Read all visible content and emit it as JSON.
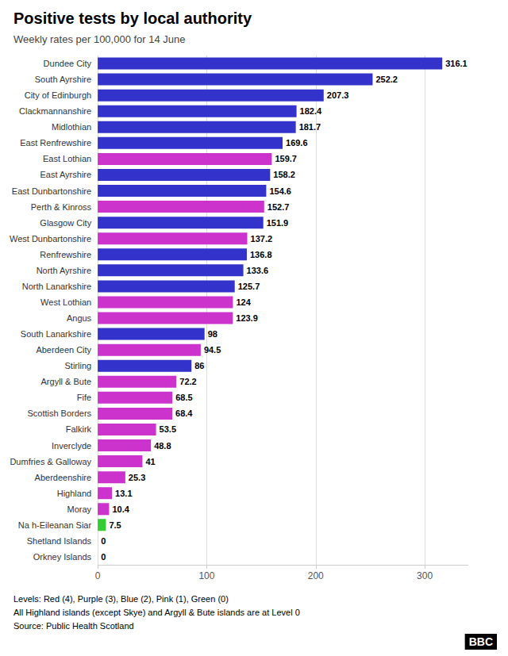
{
  "chart_data": {
    "type": "bar",
    "orientation": "horizontal",
    "title": "Positive tests by local authority",
    "subtitle": "Weekly rates per 100,000 for 14 June",
    "annotations": [
      "Levels: Red (4), Purple (3), Blue (2), Pink (1), Green (0)",
      "All Highland islands (except Skye) and Argyll & Bute islands are at Level 0",
      "Source: Public Health Scotland",
      "BBC"
    ],
    "categories": [
      "Dundee City",
      "South Ayrshire",
      "City of Edinburgh",
      "Clackmannanshire",
      "Midlothian",
      "East Renfrewshire",
      "East Lothian",
      "East Ayrshire",
      "East Dunbartonshire",
      "Perth & Kinross",
      "Glasgow City",
      "West Dunbartonshire",
      "Renfrewshire",
      "North Ayrshire",
      "North Lanarkshire",
      "West Lothian",
      "Angus",
      "South Lanarkshire",
      "Aberdeen City",
      "Stirling",
      "Argyll & Bute",
      "Fife",
      "Scottish Borders",
      "Falkirk",
      "Inverclyde",
      "Dumfries & Galloway",
      "Aberdeenshire",
      "Highland",
      "Moray",
      "Na h-Eileanan Siar",
      "Shetland Islands",
      "Orkney Islands"
    ],
    "values": [
      316.1,
      252.2,
      207.3,
      182.4,
      181.7,
      169.6,
      159.7,
      158.2,
      154.6,
      152.7,
      151.9,
      137.2,
      136.8,
      133.6,
      125.7,
      124.0,
      123.9,
      98.0,
      94.5,
      86.0,
      72.2,
      68.5,
      68.4,
      53.5,
      48.8,
      41.0,
      25.3,
      13.1,
      10.4,
      7.5,
      0.0,
      0.0
    ],
    "colors": [
      "#3333cc",
      "#3333cc",
      "#3333cc",
      "#3333cc",
      "#3333cc",
      "#3333cc",
      "#cc33cc",
      "#3333cc",
      "#3333cc",
      "#cc33cc",
      "#3333cc",
      "#cc33cc",
      "#3333cc",
      "#3333cc",
      "#3333cc",
      "#cc33cc",
      "#cc33cc",
      "#3333cc",
      "#cc33cc",
      "#3333cc",
      "#cc33cc",
      "#cc33cc",
      "#cc33cc",
      "#cc33cc",
      "#cc33cc",
      "#cc33cc",
      "#cc33cc",
      "#cc33cc",
      "#cc33cc",
      "#33cc33",
      "#33cc33",
      "#33cc33"
    ],
    "xlim": [
      0,
      340
    ],
    "xticks": [
      0,
      100,
      200,
      300
    ],
    "grid": true,
    "data_labels": true
  }
}
